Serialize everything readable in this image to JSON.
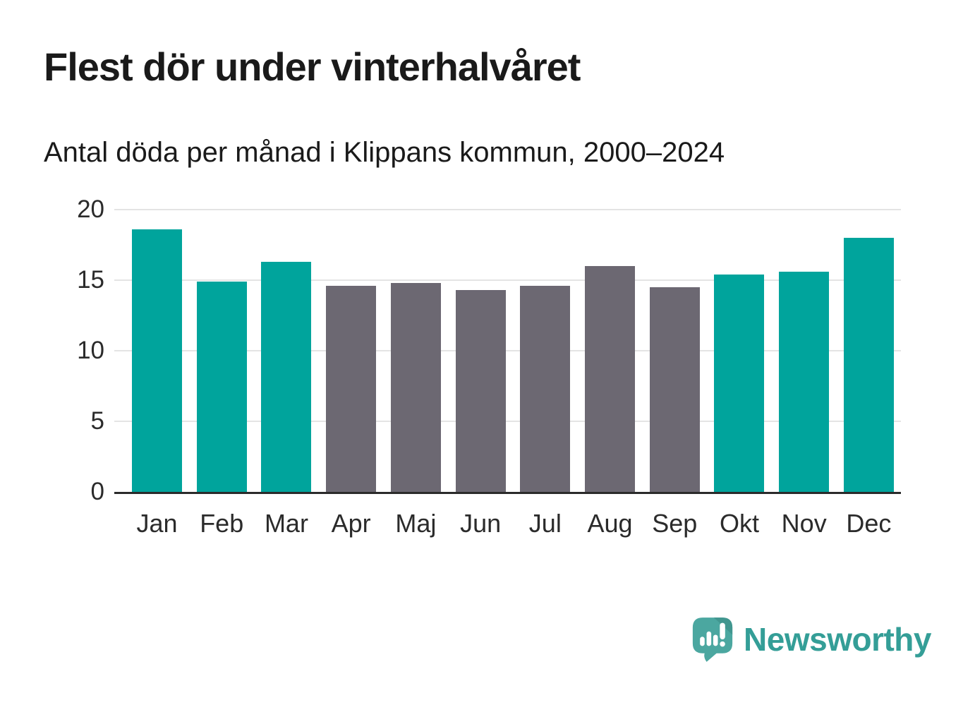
{
  "title": "Flest dör under vinterhalvåret",
  "subtitle": "Antal döda per månad i Klippans kommun, 2000–2024",
  "chart_data": {
    "type": "bar",
    "categories": [
      "Jan",
      "Feb",
      "Mar",
      "Apr",
      "Maj",
      "Jun",
      "Jul",
      "Aug",
      "Sep",
      "Okt",
      "Nov",
      "Dec"
    ],
    "values": [
      18.6,
      14.9,
      16.3,
      14.6,
      14.8,
      14.3,
      14.6,
      16.0,
      14.5,
      15.4,
      15.6,
      18.0
    ],
    "bar_groups": [
      "winter",
      "winter",
      "winter",
      "summer",
      "summer",
      "summer",
      "summer",
      "summer",
      "summer",
      "winter",
      "winter",
      "winter"
    ],
    "group_colors": {
      "winter": "#00a49c",
      "summer": "#6c6872"
    },
    "title": "Flest dör under vinterhalvåret",
    "subtitle": "Antal döda per månad i Klippans kommun, 2000–2024",
    "xlabel": "",
    "ylabel": "",
    "ylim": [
      0,
      20
    ],
    "yticks": [
      0,
      5,
      10,
      15,
      20
    ],
    "grid": true,
    "gridline_color": "#e4e4e4",
    "axis_line_color": "#2b2b2b",
    "tick_label_color": "#2b2b2b"
  },
  "footer": {
    "brand": "Newsworthy",
    "logo_icon": "newsworthy-speech-bubble-barchart-icon",
    "brand_color": "#349e97",
    "logo_color": "#4ba7a0"
  }
}
